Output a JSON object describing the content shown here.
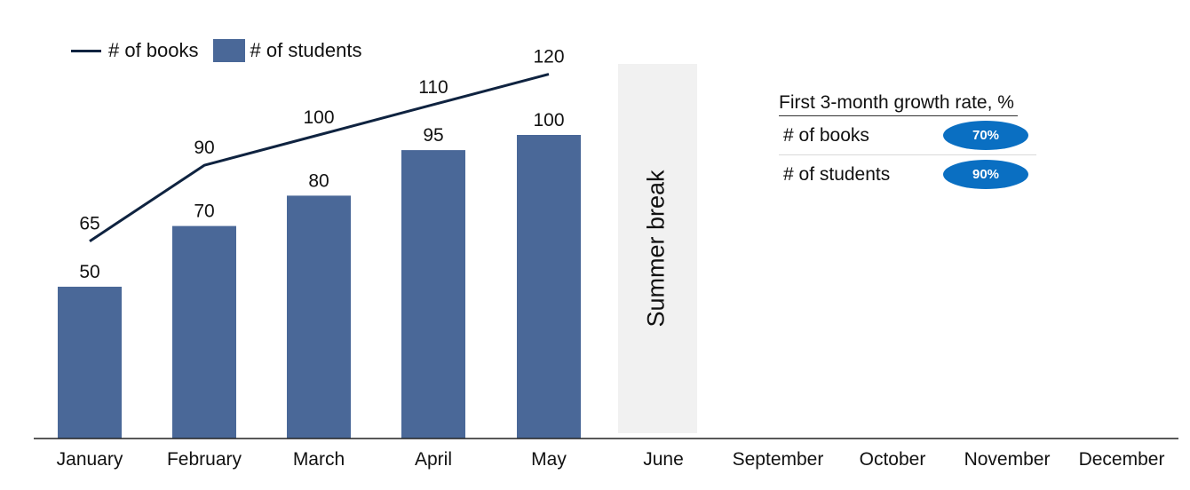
{
  "chart_data": {
    "type": "bar",
    "categories": [
      "January",
      "February",
      "March",
      "April",
      "May",
      "June",
      "September",
      "October",
      "November",
      "December"
    ],
    "series": [
      {
        "name": "# of students",
        "type": "bar",
        "values": [
          50,
          70,
          80,
          95,
          100,
          null,
          null,
          null,
          null,
          null
        ]
      },
      {
        "name": "# of books",
        "type": "line",
        "values": [
          65,
          90,
          100,
          110,
          120,
          null,
          null,
          null,
          null,
          null
        ]
      }
    ],
    "annotation": {
      "category": "June",
      "text": "Summer break"
    },
    "title": "",
    "xlabel": "",
    "ylabel": "",
    "legend": "top-left",
    "grid": false,
    "colors": {
      "bar": "#4a6898",
      "line": "#0f2340",
      "annotation_band": "#f1f1f1",
      "badge": "#0a6fc2"
    }
  },
  "legend": {
    "line_label": "# of books",
    "bar_label": "# of students"
  },
  "growth_table": {
    "title": "First 3-month growth rate, %",
    "rows": [
      {
        "label": "# of books",
        "value": "70%"
      },
      {
        "label": "# of students",
        "value": "90%"
      }
    ]
  }
}
